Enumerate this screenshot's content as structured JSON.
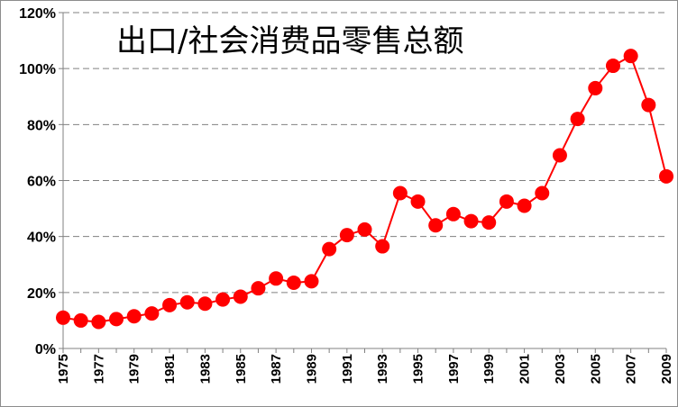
{
  "chart_data": {
    "type": "line",
    "title": "出口/社会消费品零售总额",
    "xlabel": "",
    "ylabel": "",
    "ylim": [
      0,
      120
    ],
    "y_ticks": [
      0,
      20,
      40,
      60,
      80,
      100,
      120
    ],
    "y_tick_labels": [
      "0%",
      "20%",
      "40%",
      "60%",
      "80%",
      "100%",
      "120%"
    ],
    "x_tick_labels": [
      "1975",
      "1977",
      "1979",
      "1981",
      "1983",
      "1985",
      "1987",
      "1989",
      "1991",
      "1993",
      "1995",
      "1997",
      "1999",
      "2001",
      "2003",
      "2005",
      "2007",
      "2009"
    ],
    "grid": "horizontal-dashed",
    "legend": "none",
    "series": [
      {
        "color": "#ff0000",
        "x": [
          1975,
          1976,
          1977,
          1978,
          1979,
          1980,
          1981,
          1982,
          1983,
          1984,
          1985,
          1986,
          1987,
          1988,
          1989,
          1990,
          1991,
          1992,
          1993,
          1994,
          1995,
          1996,
          1997,
          1998,
          1999,
          2000,
          2001,
          2002,
          2003,
          2004,
          2005,
          2006,
          2007,
          2008,
          2009
        ],
        "values": [
          11,
          10,
          9.5,
          10.5,
          11.5,
          12.5,
          15.5,
          16.5,
          16,
          17.5,
          18.5,
          21.5,
          25,
          23.5,
          24,
          35.5,
          40.5,
          42.5,
          36.5,
          55.5,
          52.5,
          44,
          48,
          45.5,
          45,
          52.5,
          51,
          55.5,
          69,
          82,
          93,
          101,
          104.5,
          87,
          61.5
        ]
      }
    ]
  }
}
